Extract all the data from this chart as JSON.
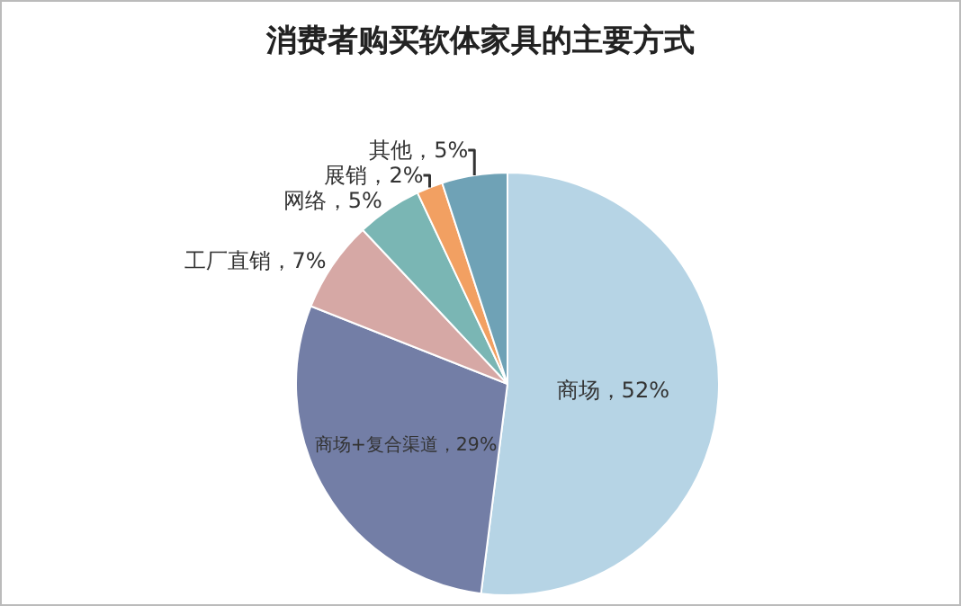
{
  "chart_data": {
    "type": "pie",
    "title": "消费者购买软体家具的主要方式",
    "categories": [
      "商场",
      "商场+复合渠道",
      "工厂直销",
      "网络",
      "展销",
      "其他"
    ],
    "values": [
      52,
      29,
      7,
      5,
      2,
      5
    ],
    "colors": [
      "#b6d4e5",
      "#737ea6",
      "#d6a8a5",
      "#7ab6b4",
      "#f2a062",
      "#6fa2b6"
    ],
    "value_labels": [
      "52%",
      "29%",
      "7%",
      "5%",
      "2%",
      "5%"
    ],
    "legend": false
  }
}
